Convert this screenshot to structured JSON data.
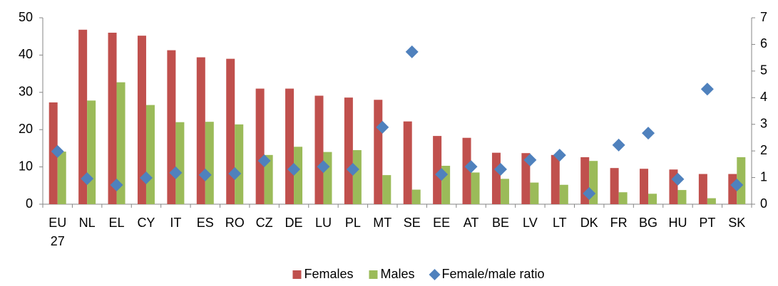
{
  "chart_data": {
    "type": "bar",
    "categories": [
      "EU 27",
      "NL",
      "EL",
      "CY",
      "IT",
      "ES",
      "RO",
      "CZ",
      "DE",
      "LU",
      "PL",
      "MT",
      "SE",
      "EE",
      "AT",
      "BE",
      "LV",
      "LT",
      "DK",
      "FR",
      "BG",
      "HU",
      "PT",
      "SK"
    ],
    "series": [
      {
        "name": "Females",
        "type": "bar",
        "color": "#c0504d",
        "values": [
          27.3,
          46.8,
          46.0,
          45.2,
          41.3,
          39.4,
          39.0,
          31.0,
          31.0,
          29.1,
          28.6,
          28.0,
          22.2,
          18.3,
          17.8,
          13.8,
          13.7,
          13.2,
          12.6,
          9.7,
          9.5,
          9.3,
          8.1,
          8.1
        ]
      },
      {
        "name": "Males",
        "type": "bar",
        "color": "#9bbb59",
        "values": [
          14.1,
          27.8,
          32.7,
          26.6,
          22.0,
          22.1,
          21.4,
          13.2,
          15.4,
          14.0,
          14.5,
          7.8,
          3.9,
          10.3,
          8.5,
          6.8,
          5.8,
          5.2,
          11.6,
          3.2,
          2.8,
          3.8,
          1.6,
          12.6
        ]
      },
      {
        "name": "Female/male ratio",
        "type": "scatter",
        "axis": "y2",
        "color": "#4f81bd",
        "values": [
          1.98,
          0.96,
          0.72,
          0.99,
          1.18,
          1.1,
          1.15,
          1.63,
          1.31,
          1.41,
          1.31,
          2.89,
          5.72,
          1.12,
          1.41,
          1.31,
          1.66,
          1.84,
          0.4,
          2.22,
          2.67,
          0.94,
          4.32,
          0.72
        ]
      }
    ],
    "ylim": [
      0,
      50
    ],
    "yticks": [
      0,
      10,
      20,
      30,
      40,
      50
    ],
    "y2lim": [
      0,
      7
    ],
    "y2ticks": [
      0,
      1,
      2,
      3,
      4,
      5,
      6,
      7
    ],
    "grid": false,
    "legend": "bottom"
  }
}
